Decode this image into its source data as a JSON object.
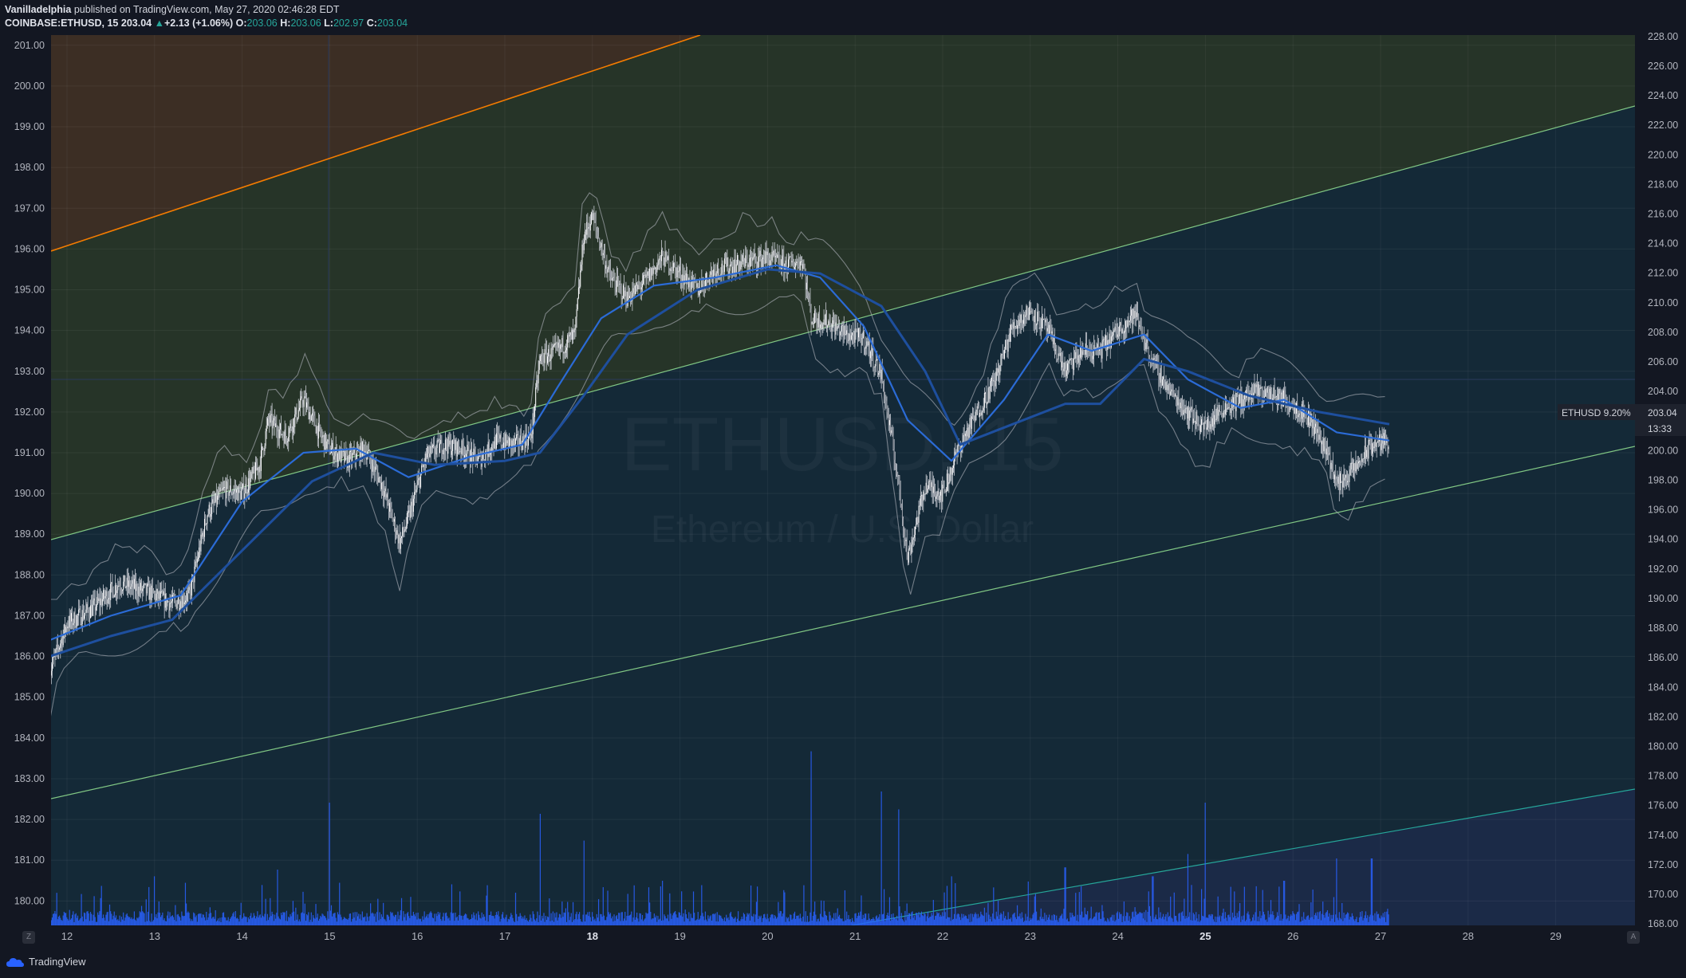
{
  "header": {
    "author": "Vanilladelphia",
    "published_text": "published on TradingView.com, May 27, 2020 02:46:28 EDT",
    "symbol": "COINBASE:ETHUSD, 15",
    "last_price": "203.04",
    "change": "+2.13 (+1.06%)",
    "open_label": "O:",
    "open": "203.06",
    "high_label": "H:",
    "high": "203.06",
    "low_label": "L:",
    "low": "202.97",
    "close_label": "C:",
    "close": "203.04"
  },
  "watermark": {
    "symbol": "ETHUSD, 15",
    "description": "Ethereum / U.S. Dollar"
  },
  "price_tag": {
    "label": "ETHUSD 9.20%",
    "price": "203.04",
    "countdown": "13:33"
  },
  "footer": {
    "brand": "TradingView",
    "z_button": "Z",
    "a_button": "A"
  },
  "colors": {
    "background": "#131722",
    "upper_band": "#3c2e24",
    "channel": "#263428",
    "lower_band": "#142937",
    "bottom_band": "#1b2a47",
    "orange_line": "#f57c00",
    "green_line": "#81c784",
    "teal_line": "#26a69a",
    "ma": "#2962ff",
    "volume": "#2962ff"
  },
  "chart_data": {
    "type": "candlestick",
    "left_axis": {
      "labels": [
        "201.00",
        "200.00",
        "199.00",
        "198.00",
        "197.00",
        "196.00",
        "195.00",
        "194.00",
        "193.00",
        "192.00",
        "191.00",
        "190.00",
        "189.00",
        "188.00",
        "187.00",
        "186.00",
        "185.00",
        "184.00",
        "183.00",
        "182.00",
        "181.00",
        "180.00"
      ],
      "range": [
        179.4,
        201.25
      ]
    },
    "right_axis": {
      "labels": [
        "228.00",
        "226.00",
        "224.00",
        "222.00",
        "220.00",
        "218.00",
        "216.00",
        "214.00",
        "212.00",
        "210.00",
        "208.00",
        "206.00",
        "204.00",
        "202.00",
        "200.00",
        "198.00",
        "196.00",
        "194.00",
        "192.00",
        "190.00",
        "188.00",
        "186.00",
        "184.00",
        "182.00",
        "180.00",
        "178.00",
        "176.00",
        "174.00",
        "172.00",
        "170.00",
        "168.00"
      ],
      "range": [
        167.9,
        228.1
      ]
    },
    "x_axis": {
      "labels": [
        "12",
        "13",
        "14",
        "15",
        "16",
        "17",
        "18",
        "19",
        "20",
        "21",
        "22",
        "23",
        "24",
        "25",
        "26",
        "27",
        "28",
        "29"
      ],
      "bold": [
        "18",
        "25"
      ]
    },
    "price_path": [
      [
        11.8,
        185.6
      ],
      [
        12.0,
        186.8
      ],
      [
        12.3,
        187.2
      ],
      [
        12.6,
        187.8
      ],
      [
        12.9,
        187.6
      ],
      [
        13.2,
        187.3
      ],
      [
        13.4,
        187.5
      ],
      [
        13.6,
        189.5
      ],
      [
        13.8,
        190.1
      ],
      [
        14.0,
        190.0
      ],
      [
        14.2,
        190.7
      ],
      [
        14.3,
        191.8
      ],
      [
        14.5,
        191.4
      ],
      [
        14.7,
        192.3
      ],
      [
        14.9,
        191.4
      ],
      [
        15.0,
        191.1
      ],
      [
        15.2,
        190.8
      ],
      [
        15.4,
        191.1
      ],
      [
        15.6,
        190.2
      ],
      [
        15.8,
        188.8
      ],
      [
        15.9,
        189.4
      ],
      [
        16.1,
        190.9
      ],
      [
        16.3,
        191.2
      ],
      [
        16.5,
        191.1
      ],
      [
        16.7,
        190.8
      ],
      [
        16.9,
        191.3
      ],
      [
        17.1,
        191.2
      ],
      [
        17.3,
        191.4
      ],
      [
        17.4,
        193.3
      ],
      [
        17.6,
        193.5
      ],
      [
        17.8,
        193.9
      ],
      [
        17.9,
        196.3
      ],
      [
        18.0,
        196.8
      ],
      [
        18.2,
        195.3
      ],
      [
        18.4,
        194.8
      ],
      [
        18.6,
        195.2
      ],
      [
        18.8,
        195.8
      ],
      [
        19.0,
        195.4
      ],
      [
        19.2,
        195.0
      ],
      [
        19.4,
        195.5
      ],
      [
        19.6,
        195.6
      ],
      [
        19.8,
        195.7
      ],
      [
        20.0,
        195.8
      ],
      [
        20.2,
        195.6
      ],
      [
        20.4,
        195.7
      ],
      [
        20.5,
        194.3
      ],
      [
        20.7,
        194.2
      ],
      [
        20.9,
        193.9
      ],
      [
        21.1,
        193.8
      ],
      [
        21.3,
        192.9
      ],
      [
        21.5,
        190.2
      ],
      [
        21.6,
        188.4
      ],
      [
        21.8,
        190.2
      ],
      [
        22.0,
        190.0
      ],
      [
        22.2,
        191.2
      ],
      [
        22.4,
        192.0
      ],
      [
        22.6,
        192.8
      ],
      [
        22.8,
        194.1
      ],
      [
        23.0,
        194.5
      ],
      [
        23.2,
        194.0
      ],
      [
        23.4,
        193.0
      ],
      [
        23.6,
        193.5
      ],
      [
        23.8,
        193.5
      ],
      [
        24.0,
        194.0
      ],
      [
        24.2,
        194.4
      ],
      [
        24.4,
        193.2
      ],
      [
        24.6,
        192.5
      ],
      [
        24.8,
        192.0
      ],
      [
        25.0,
        191.6
      ],
      [
        25.2,
        192.1
      ],
      [
        25.4,
        192.3
      ],
      [
        25.6,
        192.5
      ],
      [
        25.8,
        192.4
      ],
      [
        26.0,
        192.2
      ],
      [
        26.2,
        191.8
      ],
      [
        26.4,
        191.0
      ],
      [
        26.5,
        190.2
      ],
      [
        26.7,
        190.6
      ],
      [
        26.9,
        191.2
      ],
      [
        27.1,
        191.3
      ]
    ],
    "ma_fast": [
      [
        11.8,
        186.4
      ],
      [
        12.5,
        187.0
      ],
      [
        13.3,
        187.5
      ],
      [
        14.0,
        189.8
      ],
      [
        14.7,
        191.0
      ],
      [
        15.3,
        191.1
      ],
      [
        15.9,
        190.4
      ],
      [
        16.6,
        190.9
      ],
      [
        17.2,
        191.2
      ],
      [
        17.6,
        192.6
      ],
      [
        18.1,
        194.3
      ],
      [
        18.7,
        195.1
      ],
      [
        19.4,
        195.3
      ],
      [
        20.1,
        195.6
      ],
      [
        20.6,
        195.3
      ],
      [
        21.1,
        194.1
      ],
      [
        21.6,
        191.8
      ],
      [
        22.1,
        190.8
      ],
      [
        22.7,
        192.3
      ],
      [
        23.2,
        193.9
      ],
      [
        23.7,
        193.5
      ],
      [
        24.3,
        193.9
      ],
      [
        24.8,
        192.8
      ],
      [
        25.4,
        192.1
      ],
      [
        25.9,
        192.3
      ],
      [
        26.5,
        191.5
      ],
      [
        27.1,
        191.3
      ]
    ],
    "ma_slow": [
      [
        11.8,
        186.0
      ],
      [
        12.5,
        186.5
      ],
      [
        13.2,
        186.9
      ],
      [
        14.0,
        188.6
      ],
      [
        14.8,
        190.3
      ],
      [
        15.5,
        191.0
      ],
      [
        16.2,
        190.7
      ],
      [
        17.0,
        190.8
      ],
      [
        17.4,
        191.0
      ],
      [
        17.9,
        192.4
      ],
      [
        18.4,
        193.9
      ],
      [
        19.2,
        195.0
      ],
      [
        20.0,
        195.5
      ],
      [
        20.6,
        195.4
      ],
      [
        21.3,
        194.6
      ],
      [
        21.8,
        193.0
      ],
      [
        22.2,
        191.2
      ],
      [
        22.8,
        191.7
      ],
      [
        23.4,
        192.2
      ],
      [
        23.8,
        192.2
      ],
      [
        24.3,
        193.3
      ],
      [
        24.8,
        193.0
      ],
      [
        25.5,
        192.4
      ],
      [
        26.3,
        192.0
      ],
      [
        27.1,
        191.7
      ]
    ],
    "volume_spikes": [
      [
        13.0,
        0.22
      ],
      [
        14.4,
        0.25
      ],
      [
        15.0,
        0.55
      ],
      [
        16.8,
        0.18
      ],
      [
        17.4,
        0.5
      ],
      [
        17.9,
        0.38
      ],
      [
        18.8,
        0.2
      ],
      [
        20.5,
        0.78
      ],
      [
        21.3,
        0.6
      ],
      [
        21.5,
        0.52
      ],
      [
        22.1,
        0.22
      ],
      [
        23.4,
        0.26
      ],
      [
        24.4,
        0.22
      ],
      [
        24.8,
        0.32
      ],
      [
        25.0,
        0.55
      ],
      [
        25.9,
        0.2
      ],
      [
        26.5,
        0.3
      ],
      [
        26.9,
        0.3
      ]
    ]
  }
}
